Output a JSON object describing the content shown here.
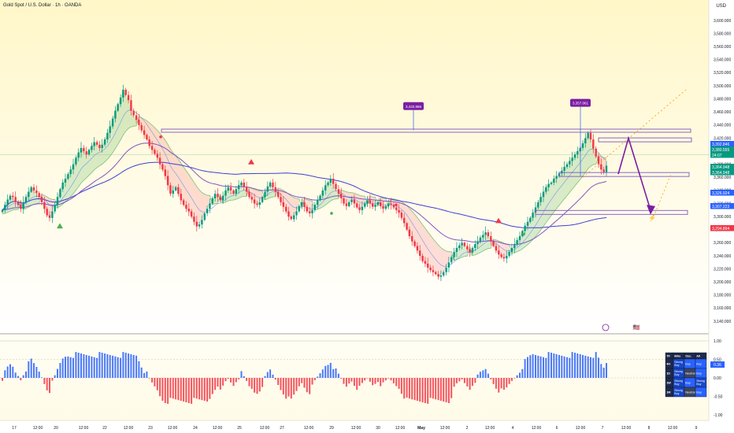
{
  "header": {
    "title": "Gold Spot / U.S. Dollar · 1h · OANDA",
    "currency": "USD"
  },
  "chart_data": {
    "type": "candlestick",
    "title": "Gold Spot / U.S. Dollar · 1h · OANDA",
    "ylim": [
      3122,
      3615
    ],
    "y_ticks": [
      "3,600.000",
      "3,580.000",
      "3,560.000",
      "3,540.000",
      "3,520.000",
      "3,500.000",
      "3,480.000",
      "3,460.000",
      "3,440.000",
      "3,420.000",
      "3,400.000",
      "3,380.000",
      "3,360.000",
      "3,340.000",
      "3,320.000",
      "3,300.000",
      "3,280.000",
      "3,260.000",
      "3,240.000",
      "3,220.000",
      "3,200.000",
      "3,180.000",
      "3,160.000",
      "3,140.000"
    ],
    "x_ticks": [
      "17",
      "12:00",
      "20",
      "12:00",
      "22",
      "12:00",
      "23",
      "12:00",
      "24",
      "12:00",
      "25",
      "12:00",
      "27",
      "12:00",
      "29",
      "12:00",
      "30",
      "12:00",
      "May",
      "12:00",
      "2",
      "12:00",
      "4",
      "12:00",
      "6",
      "12:00",
      "7",
      "12:00",
      "8",
      "12:00",
      "9"
    ],
    "price_labels": [
      {
        "text": "3,392.846",
        "color": "#2962ff"
      },
      {
        "text": "3,380.555",
        "color": "#089981"
      },
      {
        "text": "24:07",
        "color": "#089981"
      },
      {
        "text": "3,364.948",
        "color": "#089981"
      },
      {
        "text": "3,364.948",
        "color": "#089981"
      },
      {
        "text": "3,326.924",
        "color": "#2962ff"
      },
      {
        "text": "3,307.223",
        "color": "#2962ff"
      },
      {
        "text": "3,294.894",
        "color": "#f23645"
      }
    ],
    "callouts": [
      "3,432.866",
      "3,357.061"
    ],
    "levels": [
      3432,
      3418,
      3365,
      3307
    ],
    "oscillator": {
      "ylim": [
        -1.25,
        1.25
      ],
      "ticks": [
        "1.00",
        "0.50",
        "0.00",
        "-0.50",
        "-1.00"
      ],
      "last_value": "0.36"
    },
    "mtf_table": {
      "headers": [
        "TF",
        "MAs",
        "Osc.",
        "All"
      ],
      "rows": [
        [
          "4H",
          "Strong Buy",
          "Buy",
          "Buy"
        ],
        [
          "1D",
          "Strong Buy",
          "Neutral",
          "Buy"
        ],
        [
          "1W",
          "Strong Buy",
          "Buy",
          "Strong Buy"
        ],
        [
          "1M",
          "Strong Buy",
          "Neutral",
          "Buy"
        ]
      ]
    },
    "close_series": [
      3310,
      3318,
      3326,
      3332,
      3330,
      3322,
      3318,
      3312,
      3322,
      3330,
      3338,
      3345,
      3340,
      3336,
      3330,
      3322,
      3312,
      3302,
      3298,
      3308,
      3318,
      3330,
      3342,
      3352,
      3358,
      3365,
      3372,
      3380,
      3390,
      3398,
      3405,
      3400,
      3395,
      3402,
      3408,
      3414,
      3410,
      3405,
      3410,
      3418,
      3428,
      3438,
      3450,
      3462,
      3472,
      3482,
      3494,
      3486,
      3478,
      3462,
      3455,
      3448,
      3440,
      3432,
      3425,
      3418,
      3408,
      3402,
      3396,
      3390,
      3380,
      3372,
      3362,
      3348,
      3335,
      3340,
      3345,
      3335,
      3325,
      3318,
      3312,
      3308,
      3300,
      3292,
      3285,
      3288,
      3295,
      3305,
      3312,
      3320,
      3328,
      3335,
      3330,
      3325,
      3332,
      3340,
      3345,
      3340,
      3335,
      3342,
      3348,
      3352,
      3345,
      3338,
      3330,
      3326,
      3320,
      3318,
      3322,
      3330,
      3338,
      3346,
      3352,
      3345,
      3338,
      3330,
      3322,
      3315,
      3308,
      3300,
      3296,
      3302,
      3308,
      3316,
      3322,
      3315,
      3308,
      3305,
      3310,
      3318,
      3325,
      3332,
      3340,
      3348,
      3352,
      3358,
      3350,
      3342,
      3335,
      3328,
      3320,
      3316,
      3322,
      3326,
      3320,
      3314,
      3310,
      3315,
      3320,
      3325,
      3320,
      3315,
      3318,
      3322,
      3316,
      3312,
      3316,
      3320,
      3318,
      3314,
      3310,
      3306,
      3298,
      3290,
      3280,
      3270,
      3262,
      3255,
      3248,
      3240,
      3232,
      3228,
      3222,
      3218,
      3215,
      3212,
      3208,
      3210,
      3215,
      3222,
      3230,
      3238,
      3246,
      3252,
      3256,
      3260,
      3255,
      3250,
      3245,
      3252,
      3258,
      3262,
      3268,
      3272,
      3276,
      3270,
      3262,
      3255,
      3248,
      3242,
      3238,
      3236,
      3240,
      3246,
      3252,
      3258,
      3264,
      3270,
      3278,
      3286,
      3292,
      3298,
      3306,
      3314,
      3322,
      3330,
      3338,
      3345,
      3350,
      3352,
      3358,
      3362,
      3366,
      3370,
      3376,
      3380,
      3385,
      3390,
      3395,
      3400,
      3405,
      3412,
      3420,
      3428,
      3418,
      3404,
      3392,
      3380,
      3372,
      3368,
      3378
    ],
    "projection": [
      {
        "label": "up",
        "to": 3418
      },
      {
        "label": "down",
        "to": 3307
      }
    ],
    "markers": [
      "⚡",
      "🇺🇸"
    ]
  }
}
